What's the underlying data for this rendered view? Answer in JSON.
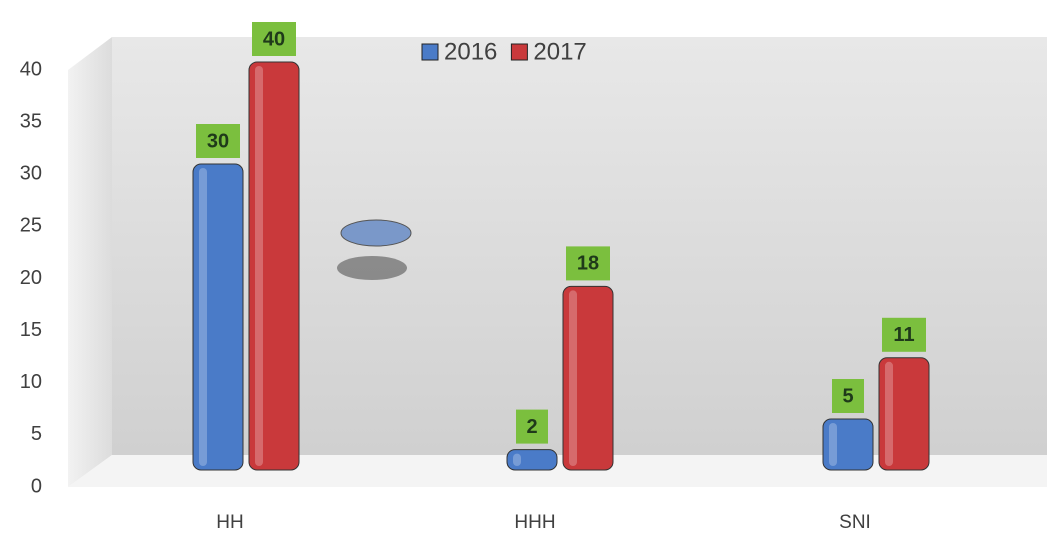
{
  "chart_data": {
    "type": "bar",
    "categories": [
      "HH",
      "HHH",
      "SNI"
    ],
    "series": [
      {
        "name": "2016",
        "color": "#4a7bc8",
        "values": [
          30,
          2,
          5
        ]
      },
      {
        "name": "2017",
        "color": "#c9393b",
        "values": [
          40,
          18,
          11
        ]
      }
    ],
    "ylim": [
      0,
      40
    ],
    "yticks": [
      0,
      5,
      10,
      15,
      20,
      25,
      30,
      35,
      40
    ]
  }
}
